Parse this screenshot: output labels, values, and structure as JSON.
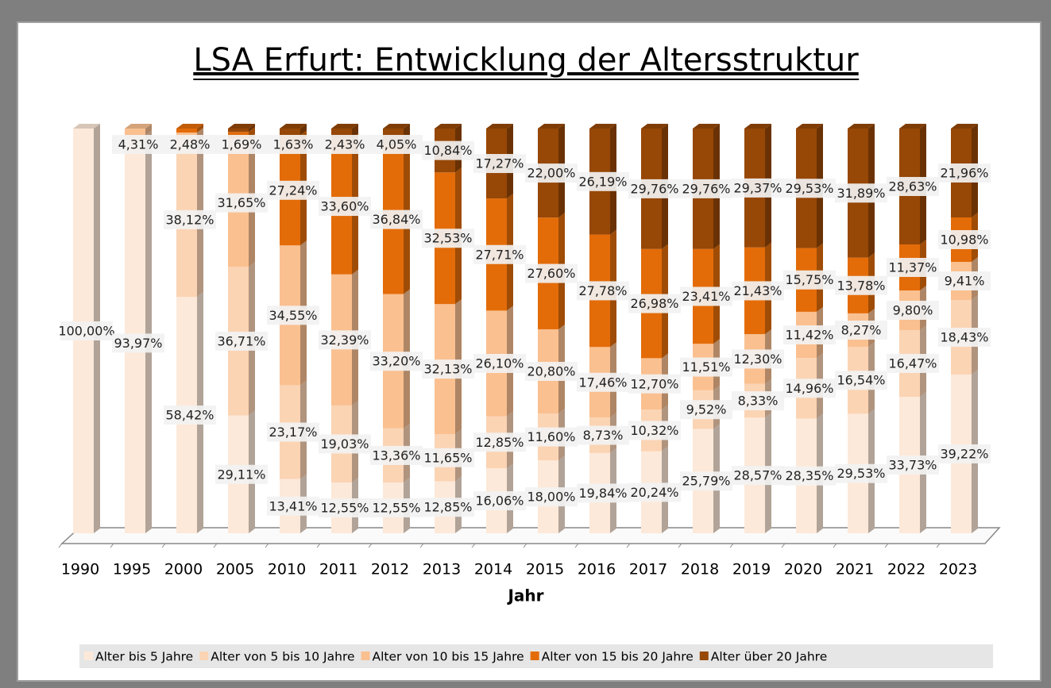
{
  "chart_data": {
    "type": "bar",
    "stacked": "percent",
    "title": "LSA Erfurt: Entwicklung der Altersstruktur",
    "xlabel": "Jahr",
    "categories": [
      "1990",
      "1995",
      "2000",
      "2005",
      "2010",
      "2011",
      "2012",
      "2013",
      "2014",
      "2015",
      "2016",
      "2017",
      "2018",
      "2019",
      "2020",
      "2021",
      "2022",
      "2023"
    ],
    "series": [
      {
        "name": "Alter bis 5 Jahre",
        "color": "#fde9d9",
        "values": [
          100,
          93.97,
          58.42,
          29.11,
          13.41,
          12.55,
          12.55,
          12.85,
          16.06,
          18.0,
          19.84,
          20.24,
          25.79,
          28.57,
          28.35,
          29.53,
          33.73,
          39.22
        ],
        "value_labels": [
          "100,00%",
          "93,97%",
          "58,42%",
          "29,11%",
          "13,41%",
          "12,55%",
          "12,55%",
          "12,85%",
          "16,06%",
          "18,00%",
          "19,84%",
          "20,24%",
          "25,79%",
          "28,57%",
          "28,35%",
          "29,53%",
          "33,73%",
          "39,22%"
        ]
      },
      {
        "name": "Alter von 5 bis 10 Jahre",
        "color": "#fbd4b4",
        "values": [
          0,
          4.31,
          38.12,
          36.71,
          23.17,
          19.03,
          13.36,
          11.65,
          12.85,
          11.6,
          8.73,
          10.32,
          9.52,
          8.33,
          14.96,
          16.54,
          16.47,
          18.43
        ],
        "value_labels": [
          null,
          "4,31%",
          "38,12%",
          "36,71%",
          "23,17%",
          "19,03%",
          "13,36%",
          "11,65%",
          "12,85%",
          "11,60%",
          "8,73%",
          "10,32%",
          "9,52%",
          "8,33%",
          "14,96%",
          "16,54%",
          "16,47%",
          "18,43%"
        ]
      },
      {
        "name": "Alter von 10 bis 15 Jahre",
        "color": "#fac090",
        "values": [
          0,
          1.72,
          2.48,
          31.65,
          34.55,
          32.39,
          33.2,
          32.13,
          26.1,
          20.8,
          17.46,
          12.7,
          11.51,
          12.3,
          11.42,
          8.27,
          9.8,
          9.41
        ],
        "value_labels": [
          null,
          null,
          "2,48%",
          "31,65%",
          "34,55%",
          "32,39%",
          "33,20%",
          "32,13%",
          "26,10%",
          "20,80%",
          "17,46%",
          "12,70%",
          "11,51%",
          "12,30%",
          "11,42%",
          "8,27%",
          "9,80%",
          "9,41%"
        ]
      },
      {
        "name": "Alter von 15 bis 20 Jahre",
        "color": "#e36c09",
        "values": [
          0,
          0,
          0.98,
          1.69,
          27.24,
          33.6,
          36.84,
          32.53,
          27.71,
          27.6,
          27.78,
          26.98,
          23.41,
          21.43,
          15.75,
          13.78,
          11.37,
          10.98
        ],
        "value_labels": [
          null,
          null,
          null,
          "1,69%",
          "27,24%",
          "33,60%",
          "36,84%",
          "32,53%",
          "27,71%",
          "27,60%",
          "27,78%",
          "26,98%",
          "23,41%",
          "21,43%",
          "15,75%",
          "13,78%",
          "11,37%",
          "10,98%"
        ]
      },
      {
        "name": "Alter über 20 Jahre",
        "color": "#974706",
        "values": [
          0,
          0,
          0,
          0.84,
          1.63,
          2.43,
          4.05,
          10.84,
          17.27,
          22.0,
          26.19,
          29.76,
          29.76,
          29.37,
          29.53,
          31.89,
          28.63,
          21.96
        ],
        "value_labels": [
          null,
          null,
          null,
          null,
          "1,63%",
          "2,43%",
          "4,05%",
          "10,84%",
          "17,27%",
          "22,00%",
          "26,19%",
          "29,76%",
          "29,76%",
          "29,37%",
          "29,53%",
          "31,89%",
          "28,63%",
          "21,96%"
        ]
      }
    ]
  }
}
